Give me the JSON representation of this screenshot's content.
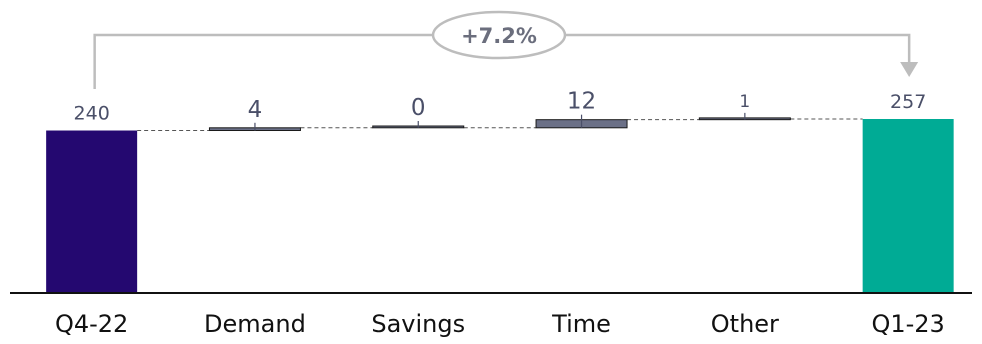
{
  "chart_data": {
    "type": "bar",
    "subtype": "waterfall",
    "categories": [
      "Q4-22",
      "Demand",
      "Savings",
      "Time",
      "Other",
      "Q1-23"
    ],
    "values": [
      240,
      4,
      0,
      12,
      1,
      257
    ],
    "value_labels": [
      "240",
      "4",
      "0",
      "12",
      "1",
      "257"
    ],
    "change_annotation": "+7.2%",
    "colors": {
      "start_total": "#240870",
      "end_total": "#00ab95",
      "delta": "#6b7087",
      "connector": "#b3b3b3"
    }
  }
}
